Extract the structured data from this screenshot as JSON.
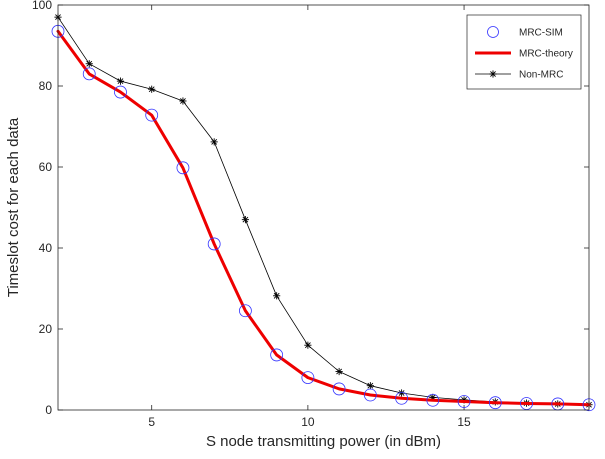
{
  "chart_data": {
    "type": "line",
    "title": "",
    "xlabel": "S node transmitting power (in dBm)",
    "ylabel": "Timeslot cost for each data",
    "xlim": [
      2,
      19
    ],
    "ylim": [
      0,
      100
    ],
    "xticks": [
      5,
      10,
      15
    ],
    "yticks": [
      0,
      20,
      40,
      60,
      80,
      100
    ],
    "grid": false,
    "box": true,
    "legend_position": "top-right",
    "x": [
      2,
      3,
      4,
      5,
      6,
      7,
      8,
      9,
      10,
      11,
      12,
      13,
      14,
      15,
      16,
      17,
      18,
      19
    ],
    "series": [
      {
        "name": "MRC-SIM",
        "style": "markers",
        "marker": "circle",
        "color": "#3333ff",
        "values": [
          93.5,
          83,
          78.5,
          72.8,
          59.8,
          41,
          24.5,
          13.6,
          8,
          5.2,
          3.7,
          2.9,
          2.4,
          2.1,
          1.8,
          1.6,
          1.5,
          1.3
        ]
      },
      {
        "name": "MRC-theory",
        "style": "line",
        "color": "#ee0000",
        "values": [
          93.5,
          83,
          78.5,
          72.8,
          59.8,
          41,
          24.5,
          13.6,
          8,
          5.2,
          3.7,
          2.9,
          2.4,
          2.1,
          1.8,
          1.6,
          1.5,
          1.3
        ]
      },
      {
        "name": "Non-MRC",
        "style": "line-markers",
        "marker": "asterisk",
        "color": "#000000",
        "values": [
          97,
          85.5,
          81.2,
          79.2,
          76.3,
          66.2,
          47,
          28.2,
          16,
          9.5,
          6,
          4.2,
          3.1,
          2.5,
          2,
          1.7,
          1.5,
          1.3
        ]
      }
    ]
  }
}
